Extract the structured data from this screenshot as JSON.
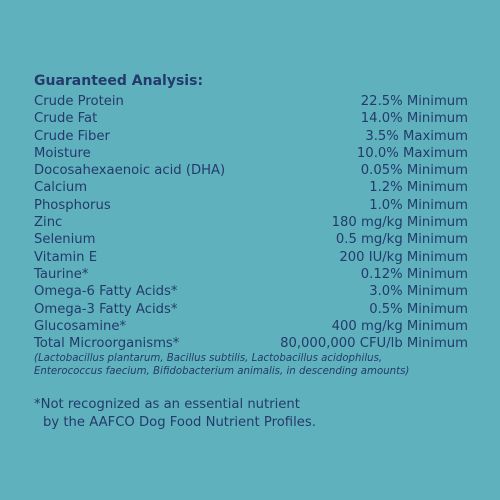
{
  "analysis": {
    "heading": "Guaranteed Analysis:",
    "rows": [
      {
        "name": "Crude Protein",
        "value": "22.5% Minimum"
      },
      {
        "name": "Crude Fat",
        "value": "14.0% Minimum"
      },
      {
        "name": "Crude Fiber",
        "value": "3.5% Maximum"
      },
      {
        "name": "Moisture",
        "value": "10.0% Maximum"
      },
      {
        "name": "Docosahexaenoic acid (DHA)",
        "value": "0.05% Minimum"
      },
      {
        "name": "Calcium",
        "value": "1.2% Minimum"
      },
      {
        "name": "Phosphorus",
        "value": "1.0% Minimum"
      },
      {
        "name": "Zinc",
        "value": "180 mg/kg Minimum"
      },
      {
        "name": "Selenium",
        "value": "0.5 mg/kg Minimum"
      },
      {
        "name": "Vitamin E",
        "value": "200 IU/kg Minimum"
      },
      {
        "name": "Taurine*",
        "value": "0.12% Minimum"
      },
      {
        "name": "Omega-6 Fatty Acids*",
        "value": "3.0% Minimum"
      },
      {
        "name": "Omega-3 Fatty Acids*",
        "value": "0.5% Minimum"
      },
      {
        "name": "Glucosamine*",
        "value": "400 mg/kg Minimum"
      },
      {
        "name": "Total Microorganisms*",
        "value": "80,000,000 CFU/lb Minimum"
      }
    ],
    "note_line1": "(Lactobacillus plantarum, Bacillus subtilis, Lactobacillus acidophilus,",
    "note_line2": "Enterococcus faecium, Bifidobacterium animalis, in descending amounts)"
  },
  "footnote": {
    "line1": "*Not recognized as an essential nutrient",
    "line2": "by the AAFCO Dog Food Nutrient Profiles."
  },
  "colors": {
    "background": "#5fb2bd",
    "text": "#243a6b"
  }
}
